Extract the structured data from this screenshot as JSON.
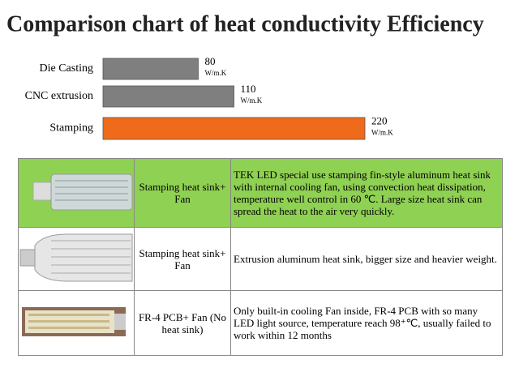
{
  "chart_data": {
    "type": "bar",
    "title": "Comparison chart of heat conductivity Efficiency",
    "categories": [
      "Die Casting",
      "CNC extrusion",
      "Stamping"
    ],
    "values": [
      80,
      110,
      220
    ],
    "unit": "W/m.K",
    "colors": [
      "#7f7f7f",
      "#7f7f7f",
      "#ef6a1b"
    ]
  },
  "table": {
    "highlight_color": "#8fd152",
    "rows": [
      [
        "Stamping heat sink+ Fan",
        "TEK LED special use stamping fin-style aluminum heat sink with internal cooling fan, using  convection heat dissipation, temperature well control in 60 ℃. Large size heat sink can spread the heat to the air very quickly."
      ],
      [
        "Stamping heat sink+ Fan",
        "Extrusion aluminum  heat sink, bigger size and heavier weight."
      ],
      [
        "FR-4 PCB+ Fan (No heat sink)",
        "Only built-in cooling Fan inside, FR-4 PCB with so many LED light source, temperature reach 98⁺℃, usually failed to work within 12 months"
      ]
    ]
  }
}
